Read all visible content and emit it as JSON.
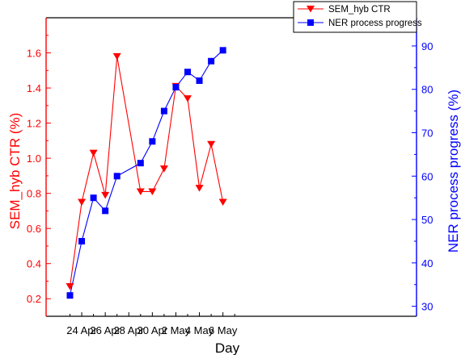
{
  "chart_data": {
    "type": "line",
    "xlabel": "Day",
    "y1label": "SEM_hyb CTR (%)",
    "y2label": "NER process progress (%)",
    "x_ticks": [
      "24 Apr",
      "26 Apr",
      "28 Apr",
      "30 Apr",
      "2 May",
      "4 May",
      "6 May"
    ],
    "x_days": [
      "23 Apr",
      "24 Apr",
      "25 Apr",
      "26 Apr",
      "27 Apr",
      "29 Apr",
      "30 Apr",
      "1 May",
      "2 May",
      "3 May",
      "4 May",
      "5 May",
      "6 May"
    ],
    "y1_ticks": [
      "0.2",
      "0.4",
      "0.6",
      "0.8",
      "1.0",
      "1.2",
      "1.4",
      "1.6"
    ],
    "y2_ticks": [
      "30",
      "40",
      "50",
      "60",
      "70",
      "80",
      "90"
    ],
    "y1lim": [
      0.1,
      1.8
    ],
    "y2lim": [
      27.7,
      96.5
    ],
    "series": [
      {
        "name": "SEM_hyb CTR",
        "axis": "left",
        "color": "#ff0000",
        "marker": "triangle-down",
        "points": [
          {
            "x": "23 Apr",
            "y": 0.27
          },
          {
            "x": "24 Apr",
            "y": 0.75
          },
          {
            "x": "25 Apr",
            "y": 1.03
          },
          {
            "x": "26 Apr",
            "y": 0.79
          },
          {
            "x": "27 Apr",
            "y": 1.58
          },
          {
            "x": "29 Apr",
            "y": 0.81
          },
          {
            "x": "30 Apr",
            "y": 0.81
          },
          {
            "x": "1 May",
            "y": 0.94
          },
          {
            "x": "2 May",
            "y": 1.41
          },
          {
            "x": "3 May",
            "y": 1.34
          },
          {
            "x": "4 May",
            "y": 0.83
          },
          {
            "x": "5 May",
            "y": 1.08
          },
          {
            "x": "6 May",
            "y": 0.75
          }
        ]
      },
      {
        "name": "NER process progress",
        "axis": "right",
        "color": "#0000ff",
        "marker": "square",
        "points": [
          {
            "x": "23 Apr",
            "y": 32.5
          },
          {
            "x": "24 Apr",
            "y": 45
          },
          {
            "x": "25 Apr",
            "y": 55
          },
          {
            "x": "26 Apr",
            "y": 52
          },
          {
            "x": "27 Apr",
            "y": 60
          },
          {
            "x": "29 Apr",
            "y": 63
          },
          {
            "x": "30 Apr",
            "y": 68
          },
          {
            "x": "1 May",
            "y": 75
          },
          {
            "x": "2 May",
            "y": 80.5
          },
          {
            "x": "3 May",
            "y": 84
          },
          {
            "x": "4 May",
            "y": 82
          },
          {
            "x": "5 May",
            "y": 86.5
          },
          {
            "x": "6 May",
            "y": 89
          }
        ]
      }
    ],
    "legend": {
      "placement": "top-right"
    },
    "grid": false
  }
}
